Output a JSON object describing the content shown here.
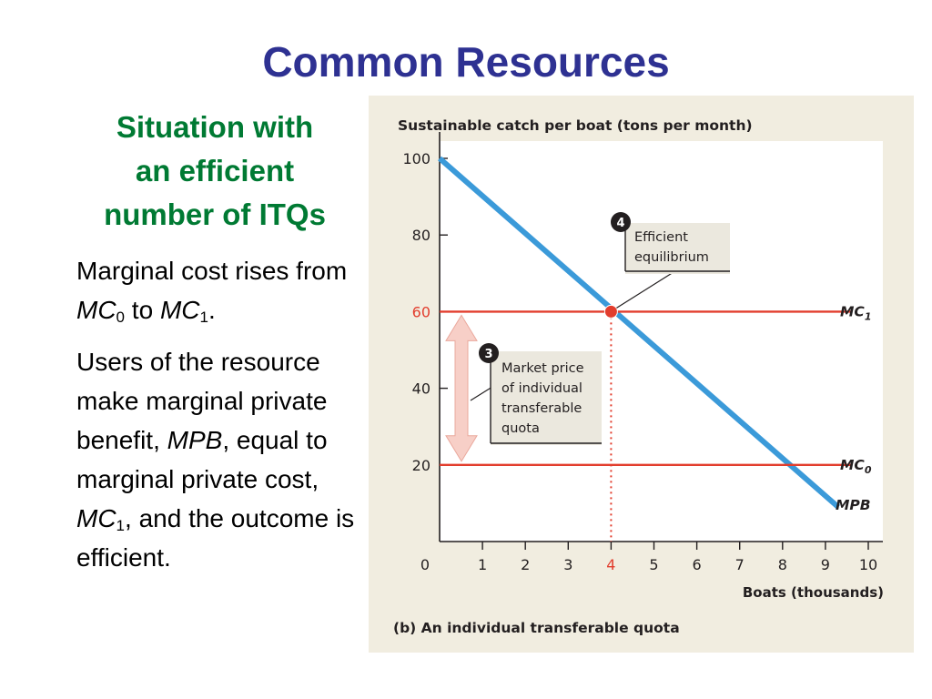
{
  "slide": {
    "title": "Common Resources",
    "subtitle_lines": [
      "Situation with",
      "an efficient",
      "number of ITQs"
    ],
    "para1": {
      "text_a": "Marginal cost rises from ",
      "mc": "MC",
      "sub0": "0",
      "text_b": " to ",
      "sub1": "1",
      "text_c": "."
    },
    "para2": {
      "text_a": "Users of the resource make marginal private benefit, ",
      "mpb": "MPB",
      "text_b": ", equal to marginal private cost, ",
      "mc": "MC",
      "sub1": "1",
      "text_c": ", and the outcome is efficient."
    }
  },
  "colors": {
    "title": "#2e3192",
    "subtitle": "#007a33",
    "panel_bg": "#f1ede0",
    "plot_bg": "#ffffff",
    "mpb_line": "#3b9ad9",
    "mc_line": "#e23d2d",
    "highlight": "#e23d2d",
    "arrow_fill": "#f7cfc7"
  },
  "chart_data": {
    "type": "line",
    "title": "Sustainable catch per boat (tons per month)",
    "xlabel": "Boats  (thousands)",
    "caption": "(b) An individual transferable quota",
    "x_ticks": [
      "0",
      "1",
      "2",
      "3",
      "4",
      "5",
      "6",
      "7",
      "8",
      "9",
      "10"
    ],
    "y_ticks": [
      "20",
      "40",
      "60",
      "80",
      "100"
    ],
    "xlim": [
      0,
      10
    ],
    "ylim": [
      0,
      100
    ],
    "highlight_x": 4,
    "highlight_y": 60,
    "series": [
      {
        "name": "MPB",
        "x": [
          0,
          9.3
        ],
        "y": [
          100,
          9
        ]
      },
      {
        "name": "MC",
        "sub": "1",
        "x": [
          0,
          9.6
        ],
        "y": [
          60,
          60
        ]
      },
      {
        "name": "MC",
        "sub": "0",
        "x": [
          0,
          9.6
        ],
        "y": [
          20,
          20
        ]
      }
    ],
    "equilibrium_point": {
      "x": 4,
      "y": 60
    },
    "annotations": [
      {
        "number": "4",
        "lines": [
          "Efficient",
          "equilibrium"
        ]
      },
      {
        "number": "3",
        "lines": [
          "Market price",
          "of individual",
          "transferable",
          "quota"
        ]
      }
    ],
    "grid": false,
    "legend": "none"
  }
}
